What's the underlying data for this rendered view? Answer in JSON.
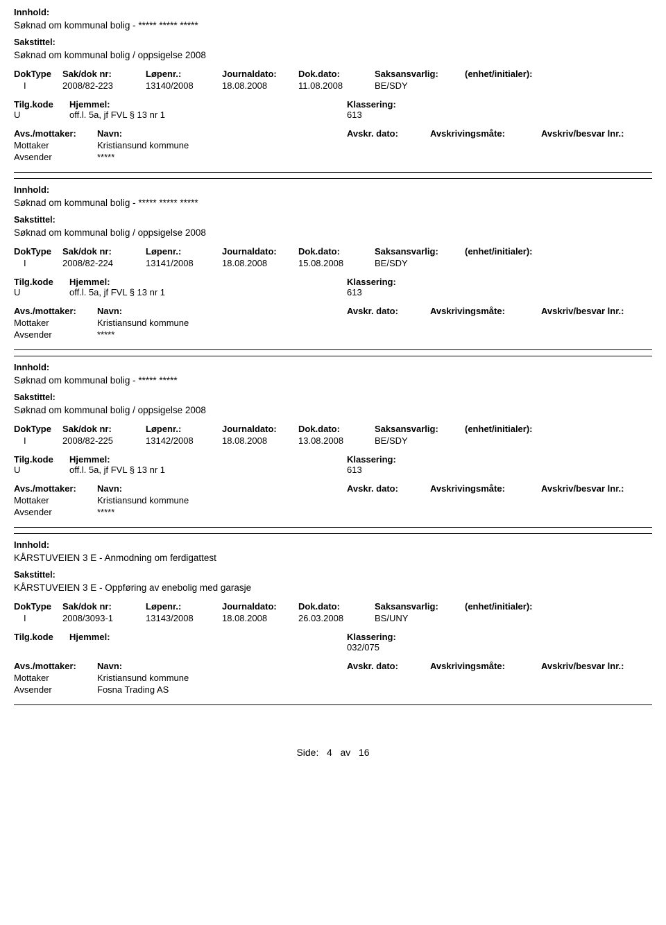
{
  "labels": {
    "innhold": "Innhold:",
    "sakstittel": "Sakstittel:",
    "doktype": "DokType",
    "sakdok": "Sak/dok nr:",
    "lopenr": "Løpenr.:",
    "journaldato": "Journaldato:",
    "dokdato": "Dok.dato:",
    "saksansvarlig": "Saksansvarlig:",
    "enhet": "(enhet/initialer):",
    "tilgkode": "Tilg.kode",
    "hjemmel": "Hjemmel:",
    "klassering": "Klassering:",
    "avsmottaker": "Avs./mottaker:",
    "navn": "Navn:",
    "avskrdato": "Avskr. dato:",
    "avskrivingsmate": "Avskrivingsmåte:",
    "avskrivbesvar": "Avskriv/besvar lnr.:",
    "mottaker": "Mottaker",
    "avsender": "Avsender"
  },
  "entries": [
    {
      "innhold": "Søknad om kommunal bolig - ***** ***** *****",
      "sakstittel": "Søknad om kommunal bolig / oppsigelse 2008",
      "doktype": "I",
      "sakdok": "2008/82-223",
      "lopenr": "13140/2008",
      "journaldato": "18.08.2008",
      "dokdato": "11.08.2008",
      "saksansvarlig": "BE/SDY",
      "tilgkode": "U",
      "hjemmel": "off.l. 5a, jf FVL § 13 nr 1",
      "klassering": "613",
      "mottaker_navn": "Kristiansund kommune",
      "avsender_navn": "*****"
    },
    {
      "innhold": "Søknad om kommunal bolig - ***** ***** *****",
      "sakstittel": "Søknad om kommunal bolig / oppsigelse 2008",
      "doktype": "I",
      "sakdok": "2008/82-224",
      "lopenr": "13141/2008",
      "journaldato": "18.08.2008",
      "dokdato": "15.08.2008",
      "saksansvarlig": "BE/SDY",
      "tilgkode": "U",
      "hjemmel": "off.l. 5a, jf FVL § 13 nr 1",
      "klassering": "613",
      "mottaker_navn": "Kristiansund kommune",
      "avsender_navn": "*****"
    },
    {
      "innhold": "Søknad om kommunal bolig - ***** *****",
      "sakstittel": "Søknad om kommunal bolig / oppsigelse 2008",
      "doktype": "I",
      "sakdok": "2008/82-225",
      "lopenr": "13142/2008",
      "journaldato": "18.08.2008",
      "dokdato": "13.08.2008",
      "saksansvarlig": "BE/SDY",
      "tilgkode": "U",
      "hjemmel": "off.l. 5a, jf FVL § 13 nr 1",
      "klassering": "613",
      "mottaker_navn": "Kristiansund kommune",
      "avsender_navn": "*****"
    },
    {
      "innhold": "KÅRSTUVEIEN 3 E - Anmodning om ferdigattest",
      "sakstittel": "KÅRSTUVEIEN 3 E - Oppføring av enebolig med garasje",
      "doktype": "I",
      "sakdok": "2008/3093-1",
      "lopenr": "13143/2008",
      "journaldato": "18.08.2008",
      "dokdato": "26.03.2008",
      "saksansvarlig": "BS/UNY",
      "tilgkode": "",
      "hjemmel": "",
      "klassering": "032/075",
      "mottaker_navn": "Kristiansund kommune",
      "avsender_navn": "Fosna Trading AS"
    }
  ],
  "footer": {
    "side_label": "Side:",
    "page_current": "4",
    "page_sep": "av",
    "page_total": "16"
  }
}
